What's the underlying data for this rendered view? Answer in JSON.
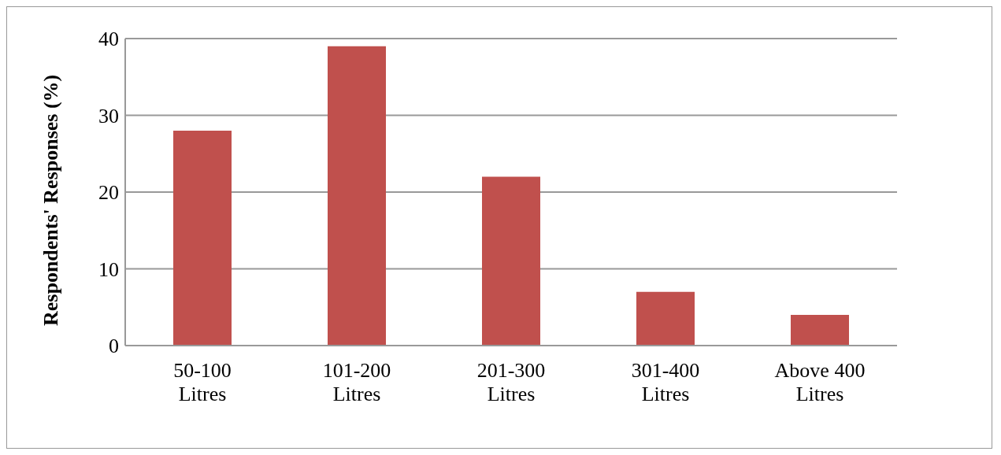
{
  "chart_data": {
    "type": "bar",
    "ylabel": "Respondents' Responses (%)",
    "categories": [
      "50-100 Litres",
      "101-200 Litres",
      "201-300 Litres",
      "301-400 Litres",
      "Above 400 Litres"
    ],
    "values": [
      28,
      39,
      22,
      7,
      4
    ],
    "color": "#c0504d",
    "ylim": [
      0,
      40
    ],
    "yticks": [
      0,
      10,
      20,
      30,
      40
    ],
    "grid": "y"
  }
}
